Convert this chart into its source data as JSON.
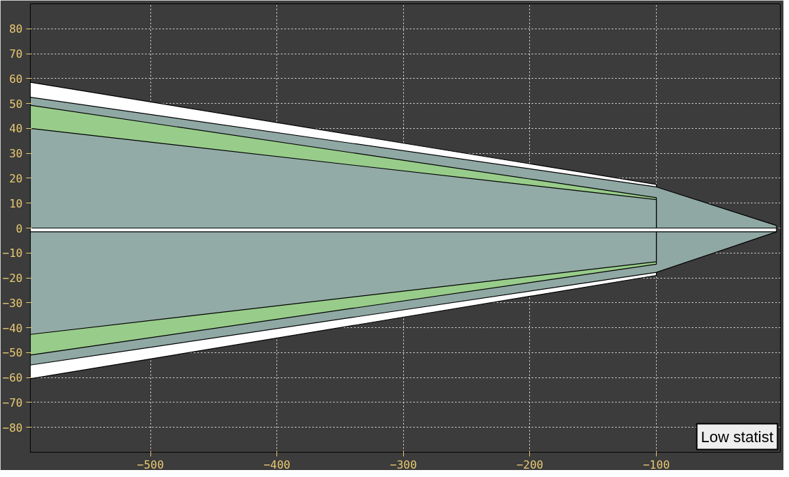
{
  "chart_data": {
    "type": "area",
    "xlim": [
      -595,
      -2
    ],
    "ylim": [
      -90,
      90
    ],
    "xticks": [
      -500,
      -400,
      -300,
      -200,
      -100
    ],
    "yticks": [
      -80,
      -70,
      -60,
      -50,
      -40,
      -30,
      -20,
      -10,
      0,
      10,
      20,
      30,
      40,
      50,
      60,
      70,
      80
    ],
    "grid": true,
    "line_style": "solid",
    "annotations": [
      "Low statist"
    ],
    "series": [
      {
        "color": "#ffffff",
        "x": [
          -595,
          -100
        ],
        "values": [
          58.5,
          17.5
        ]
      },
      {
        "color": "#8fa8a3",
        "x": [
          -595,
          -100,
          -5
        ],
        "values": [
          52.5,
          16.5,
          1
        ]
      },
      {
        "color": "#98cc8a",
        "x": [
          -595,
          -100
        ],
        "values": [
          49.3,
          12.2
        ]
      },
      {
        "color": "#92aba6",
        "x": [
          -595,
          -100
        ],
        "values": [
          40,
          11.4
        ]
      },
      {
        "color": "#ffffff",
        "x": [
          -595,
          -100
        ],
        "values": [
          -60.5,
          -19
        ]
      },
      {
        "color": "#8fa8a3",
        "x": [
          -595,
          -100,
          -5
        ],
        "values": [
          -55,
          -17.8,
          -1.5
        ]
      },
      {
        "color": "#98cc8a",
        "x": [
          -595,
          -100
        ],
        "values": [
          -51,
          -14.5
        ]
      },
      {
        "color": "#92aba6",
        "x": [
          -595,
          -100
        ],
        "values": [
          -42.7,
          -13.5
        ]
      },
      {
        "color": "#ffffff",
        "x": [
          -595,
          -5
        ],
        "values": [
          -1.5,
          -1.5
        ]
      }
    ]
  }
}
